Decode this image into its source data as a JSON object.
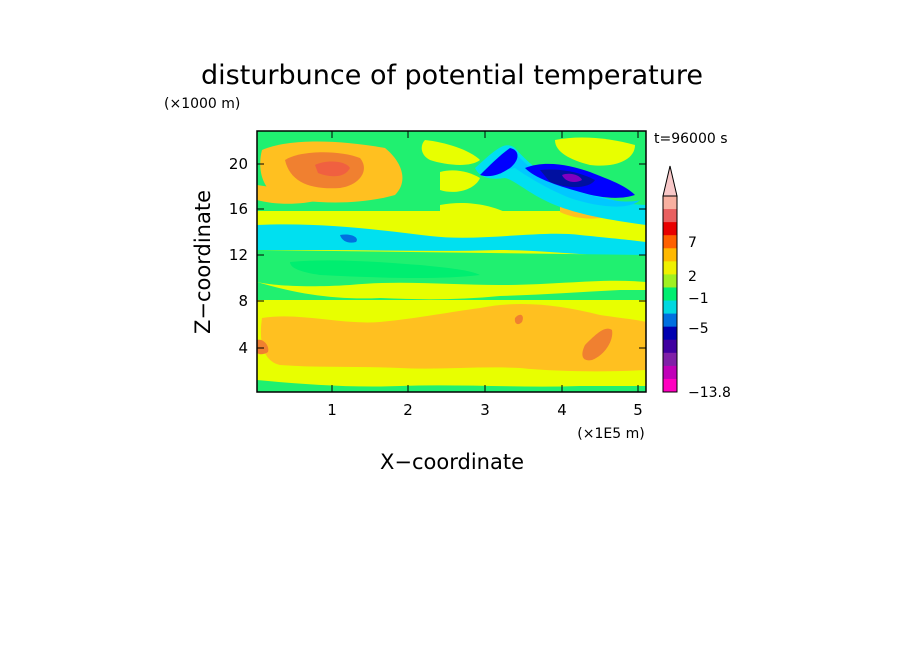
{
  "chart_data": {
    "type": "heatmap",
    "title": "disturbunce of potential temperature",
    "y_unit_label": "(×1000 m)",
    "x_unit_label": "(×1E5 m)",
    "time_label": "t=96000 s",
    "xlabel": "X−coordinate",
    "ylabel": "Z−coordinate",
    "x_ticks": [
      "1",
      "2",
      "3",
      "4",
      "5"
    ],
    "y_ticks": [
      "4",
      "8",
      "12",
      "16",
      "20"
    ],
    "xlim": [
      0,
      5.15
    ],
    "ylim": [
      0,
      22.8
    ],
    "colorbar": {
      "labels": [
        "7",
        "2",
        "−1",
        "−5",
        "−13.8"
      ],
      "colors": [
        "#f8b0a0",
        "#e86060",
        "#e80000",
        "#ff6000",
        "#ffb800",
        "#f0f000",
        "#a0f020",
        "#00ee70",
        "#00d8e0",
        "#0070e0",
        "#0000b0",
        "#4000a0",
        "#8020a8",
        "#c000b8",
        "#ff00c0"
      ]
    },
    "field_colors": {
      "orange": "#ffc020",
      "yellow": "#e8ff00",
      "green": "#20f070",
      "cyan": "#00e0f0",
      "sky": "#00c8ff",
      "blue": "#0000ff",
      "navy": "#0010a0",
      "purple": "#8000c0",
      "darkorange": "#f08030",
      "red": "#f06040"
    }
  }
}
